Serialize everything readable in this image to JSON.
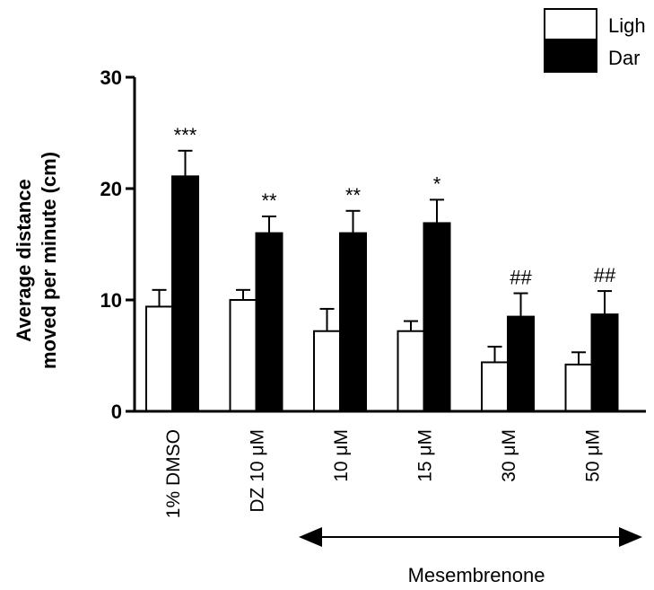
{
  "chart_data": {
    "type": "bar",
    "ylabel_lines": [
      "Average distance",
      "moved per minute (cm)"
    ],
    "ylim": [
      0,
      30
    ],
    "yticks": [
      0,
      10,
      20,
      30
    ],
    "grid": false,
    "legend_position": "top-right",
    "categories": [
      "1% DMSO",
      "DZ 10 μM",
      "10 μM",
      "15 μM",
      "30 μM",
      "50 μM"
    ],
    "series": [
      {
        "name": "Ligh",
        "color": "#ffffff",
        "values": [
          9.4,
          10.0,
          7.2,
          7.2,
          4.4,
          4.2
        ],
        "errors": [
          1.5,
          0.9,
          2.0,
          0.9,
          1.4,
          1.1
        ]
      },
      {
        "name": "Dar",
        "color": "#000000",
        "values": [
          21.1,
          16.0,
          16.0,
          16.9,
          8.5,
          8.7
        ],
        "errors": [
          2.3,
          1.5,
          2.0,
          2.1,
          2.1,
          2.1
        ]
      }
    ],
    "annotations": [
      "***",
      "**",
      "**",
      "*",
      "##",
      "##"
    ],
    "group_label": "Mesembrenone"
  }
}
